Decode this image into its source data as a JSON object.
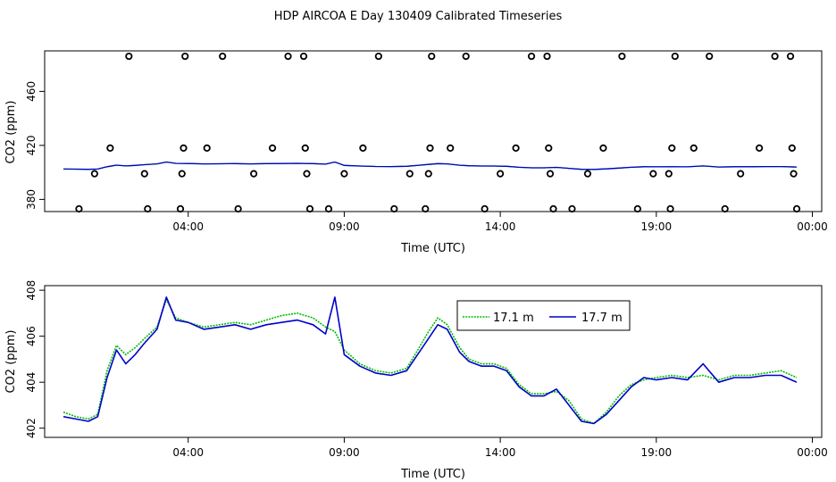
{
  "chart_data": [
    {
      "type": "scatter",
      "title": "HDP AIRCOA E  Day 130409  Calibrated Timeseries",
      "xlabel": "Time (UTC)",
      "ylabel": "CO2 (ppm)",
      "xlim_hours": [
        -0.6,
        24.3
      ],
      "ylim": [
        371,
        490
      ],
      "xticks": [
        {
          "h": 4,
          "label": "04:00"
        },
        {
          "h": 9,
          "label": "09:00"
        },
        {
          "h": 14,
          "label": "14:00"
        },
        {
          "h": 19,
          "label": "19:00"
        },
        {
          "h": 24,
          "label": "00:00"
        }
      ],
      "yticks": [
        380,
        420,
        460
      ],
      "line_color": "#0000cc",
      "marker": "open-circle",
      "calibration_points": [
        {
          "x": 0.5,
          "y": 373
        },
        {
          "x": 1.0,
          "y": 399
        },
        {
          "x": 1.5,
          "y": 418
        },
        {
          "x": 2.1,
          "y": 486
        },
        {
          "x": 2.6,
          "y": 399
        },
        {
          "x": 2.7,
          "y": 373
        },
        {
          "x": 3.75,
          "y": 373
        },
        {
          "x": 3.8,
          "y": 399
        },
        {
          "x": 3.85,
          "y": 418
        },
        {
          "x": 3.9,
          "y": 486
        },
        {
          "x": 4.6,
          "y": 418
        },
        {
          "x": 5.1,
          "y": 486
        },
        {
          "x": 5.6,
          "y": 373
        },
        {
          "x": 6.1,
          "y": 399
        },
        {
          "x": 6.7,
          "y": 418
        },
        {
          "x": 7.2,
          "y": 486
        },
        {
          "x": 7.7,
          "y": 486
        },
        {
          "x": 7.75,
          "y": 418
        },
        {
          "x": 7.8,
          "y": 399
        },
        {
          "x": 7.9,
          "y": 373
        },
        {
          "x": 8.5,
          "y": 373
        },
        {
          "x": 9.0,
          "y": 399
        },
        {
          "x": 9.6,
          "y": 418
        },
        {
          "x": 10.1,
          "y": 486
        },
        {
          "x": 10.6,
          "y": 373
        },
        {
          "x": 11.1,
          "y": 399
        },
        {
          "x": 11.6,
          "y": 373
        },
        {
          "x": 11.7,
          "y": 399
        },
        {
          "x": 11.75,
          "y": 418
        },
        {
          "x": 11.8,
          "y": 486
        },
        {
          "x": 12.4,
          "y": 418
        },
        {
          "x": 12.9,
          "y": 486
        },
        {
          "x": 13.5,
          "y": 373
        },
        {
          "x": 14.0,
          "y": 399
        },
        {
          "x": 14.5,
          "y": 418
        },
        {
          "x": 15.0,
          "y": 486
        },
        {
          "x": 15.5,
          "y": 486
        },
        {
          "x": 15.55,
          "y": 418
        },
        {
          "x": 15.6,
          "y": 399
        },
        {
          "x": 15.7,
          "y": 373
        },
        {
          "x": 16.3,
          "y": 373
        },
        {
          "x": 16.8,
          "y": 399
        },
        {
          "x": 17.3,
          "y": 418
        },
        {
          "x": 17.9,
          "y": 486
        },
        {
          "x": 18.4,
          "y": 373
        },
        {
          "x": 18.9,
          "y": 399
        },
        {
          "x": 19.4,
          "y": 399
        },
        {
          "x": 19.45,
          "y": 373
        },
        {
          "x": 19.5,
          "y": 418
        },
        {
          "x": 19.6,
          "y": 486
        },
        {
          "x": 20.2,
          "y": 418
        },
        {
          "x": 20.7,
          "y": 486
        },
        {
          "x": 21.2,
          "y": 373
        },
        {
          "x": 21.7,
          "y": 399
        },
        {
          "x": 22.3,
          "y": 418
        },
        {
          "x": 22.8,
          "y": 486
        },
        {
          "x": 23.3,
          "y": 486
        },
        {
          "x": 23.35,
          "y": 418
        },
        {
          "x": 23.4,
          "y": 399
        },
        {
          "x": 23.5,
          "y": 373
        }
      ]
    },
    {
      "type": "line",
      "title": "",
      "xlabel": "Time (UTC)",
      "ylabel": "CO2 (ppm)",
      "xlim_hours": [
        -0.6,
        24.3
      ],
      "ylim": [
        401.6,
        408.2
      ],
      "xticks": [
        {
          "h": 4,
          "label": "04:00"
        },
        {
          "h": 9,
          "label": "09:00"
        },
        {
          "h": 14,
          "label": "14:00"
        },
        {
          "h": 19,
          "label": "19:00"
        },
        {
          "h": 24,
          "label": "00:00"
        }
      ],
      "yticks": [
        402,
        404,
        406,
        408
      ],
      "legend_position": "top-right",
      "series": [
        {
          "name": "17.1 m",
          "color": "#00bb00",
          "style": "dotted",
          "points": [
            [
              0,
              402.7
            ],
            [
              0.4,
              402.5
            ],
            [
              0.8,
              402.4
            ],
            [
              1.1,
              402.6
            ],
            [
              1.4,
              404.5
            ],
            [
              1.7,
              405.6
            ],
            [
              2.0,
              405.2
            ],
            [
              2.3,
              405.5
            ],
            [
              2.6,
              405.9
            ],
            [
              3.0,
              406.4
            ],
            [
              3.3,
              407.6
            ],
            [
              3.6,
              406.8
            ],
            [
              4.0,
              406.6
            ],
            [
              4.5,
              406.4
            ],
            [
              5.0,
              406.5
            ],
            [
              5.5,
              406.6
            ],
            [
              6.0,
              406.5
            ],
            [
              6.5,
              406.7
            ],
            [
              7.0,
              406.9
            ],
            [
              7.5,
              407.0
            ],
            [
              8.0,
              406.8
            ],
            [
              8.4,
              406.4
            ],
            [
              8.7,
              406.2
            ],
            [
              9.0,
              405.4
            ],
            [
              9.5,
              404.8
            ],
            [
              10.0,
              404.5
            ],
            [
              10.5,
              404.4
            ],
            [
              11.0,
              404.6
            ],
            [
              11.4,
              405.5
            ],
            [
              11.7,
              406.2
            ],
            [
              12.0,
              406.8
            ],
            [
              12.3,
              406.5
            ],
            [
              12.7,
              405.5
            ],
            [
              13.0,
              405.0
            ],
            [
              13.4,
              404.8
            ],
            [
              13.8,
              404.8
            ],
            [
              14.2,
              404.6
            ],
            [
              14.6,
              403.9
            ],
            [
              15.0,
              403.5
            ],
            [
              15.4,
              403.5
            ],
            [
              15.8,
              403.6
            ],
            [
              16.2,
              403.2
            ],
            [
              16.6,
              402.4
            ],
            [
              17.0,
              402.2
            ],
            [
              17.4,
              402.7
            ],
            [
              17.8,
              403.4
            ],
            [
              18.2,
              403.9
            ],
            [
              18.6,
              404.1
            ],
            [
              19.0,
              404.2
            ],
            [
              19.5,
              404.3
            ],
            [
              20.0,
              404.2
            ],
            [
              20.5,
              404.3
            ],
            [
              21.0,
              404.1
            ],
            [
              21.5,
              404.3
            ],
            [
              22.0,
              404.3
            ],
            [
              22.5,
              404.4
            ],
            [
              23.0,
              404.5
            ],
            [
              23.5,
              404.2
            ]
          ]
        },
        {
          "name": "17.7 m",
          "color": "#0000cc",
          "style": "solid",
          "points": [
            [
              0,
              402.5
            ],
            [
              0.4,
              402.4
            ],
            [
              0.8,
              402.3
            ],
            [
              1.1,
              402.5
            ],
            [
              1.4,
              404.2
            ],
            [
              1.7,
              405.4
            ],
            [
              2.0,
              404.8
            ],
            [
              2.3,
              405.2
            ],
            [
              2.6,
              405.7
            ],
            [
              3.0,
              406.3
            ],
            [
              3.3,
              407.7
            ],
            [
              3.6,
              406.7
            ],
            [
              4.0,
              406.6
            ],
            [
              4.5,
              406.3
            ],
            [
              5.0,
              406.4
            ],
            [
              5.5,
              406.5
            ],
            [
              6.0,
              406.3
            ],
            [
              6.5,
              406.5
            ],
            [
              7.0,
              406.6
            ],
            [
              7.5,
              406.7
            ],
            [
              8.0,
              406.5
            ],
            [
              8.4,
              406.1
            ],
            [
              8.7,
              407.7
            ],
            [
              9.0,
              405.2
            ],
            [
              9.5,
              404.7
            ],
            [
              10.0,
              404.4
            ],
            [
              10.5,
              404.3
            ],
            [
              11.0,
              404.5
            ],
            [
              11.4,
              405.3
            ],
            [
              11.7,
              405.9
            ],
            [
              12.0,
              406.5
            ],
            [
              12.3,
              406.3
            ],
            [
              12.7,
              405.3
            ],
            [
              13.0,
              404.9
            ],
            [
              13.4,
              404.7
            ],
            [
              13.8,
              404.7
            ],
            [
              14.2,
              404.5
            ],
            [
              14.6,
              403.8
            ],
            [
              15.0,
              403.4
            ],
            [
              15.4,
              403.4
            ],
            [
              15.8,
              403.7
            ],
            [
              16.2,
              403.0
            ],
            [
              16.6,
              402.3
            ],
            [
              17.0,
              402.2
            ],
            [
              17.4,
              402.6
            ],
            [
              17.8,
              403.2
            ],
            [
              18.2,
              403.8
            ],
            [
              18.6,
              404.2
            ],
            [
              19.0,
              404.1
            ],
            [
              19.5,
              404.2
            ],
            [
              20.0,
              404.1
            ],
            [
              20.5,
              404.8
            ],
            [
              21.0,
              404.0
            ],
            [
              21.5,
              404.2
            ],
            [
              22.0,
              404.2
            ],
            [
              22.5,
              404.3
            ],
            [
              23.0,
              404.3
            ],
            [
              23.5,
              404.0
            ]
          ]
        }
      ]
    }
  ]
}
